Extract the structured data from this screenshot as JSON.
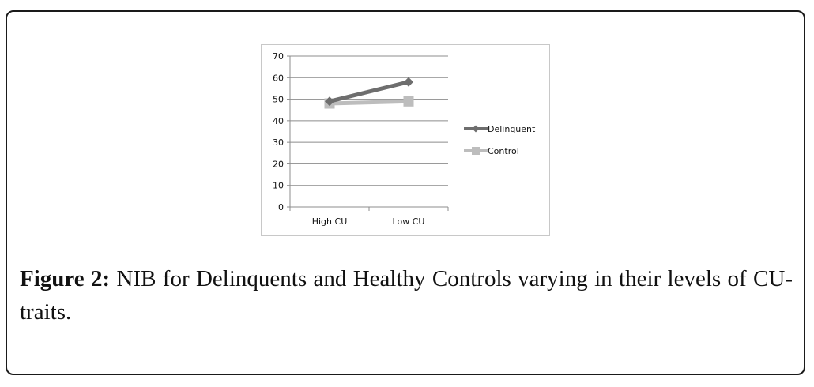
{
  "figure": {
    "label": "Figure 2:",
    "caption": " NIB for Delinquents and Healthy Controls varying in their levels of CU-traits."
  },
  "chart_data": {
    "type": "line",
    "title": "",
    "xlabel": "",
    "ylabel": "",
    "categories": [
      "High CU",
      "Low CU"
    ],
    "ylim": [
      0,
      70
    ],
    "yticks": [
      0,
      10,
      20,
      30,
      40,
      50,
      60,
      70
    ],
    "grid": true,
    "legend_position": "right",
    "series": [
      {
        "name": "Delinquent",
        "values": [
          49,
          58
        ],
        "color": "#6e6e6e",
        "marker": "diamond"
      },
      {
        "name": "Control",
        "values": [
          48,
          49
        ],
        "color": "#bdbdbd",
        "marker": "square"
      }
    ]
  }
}
